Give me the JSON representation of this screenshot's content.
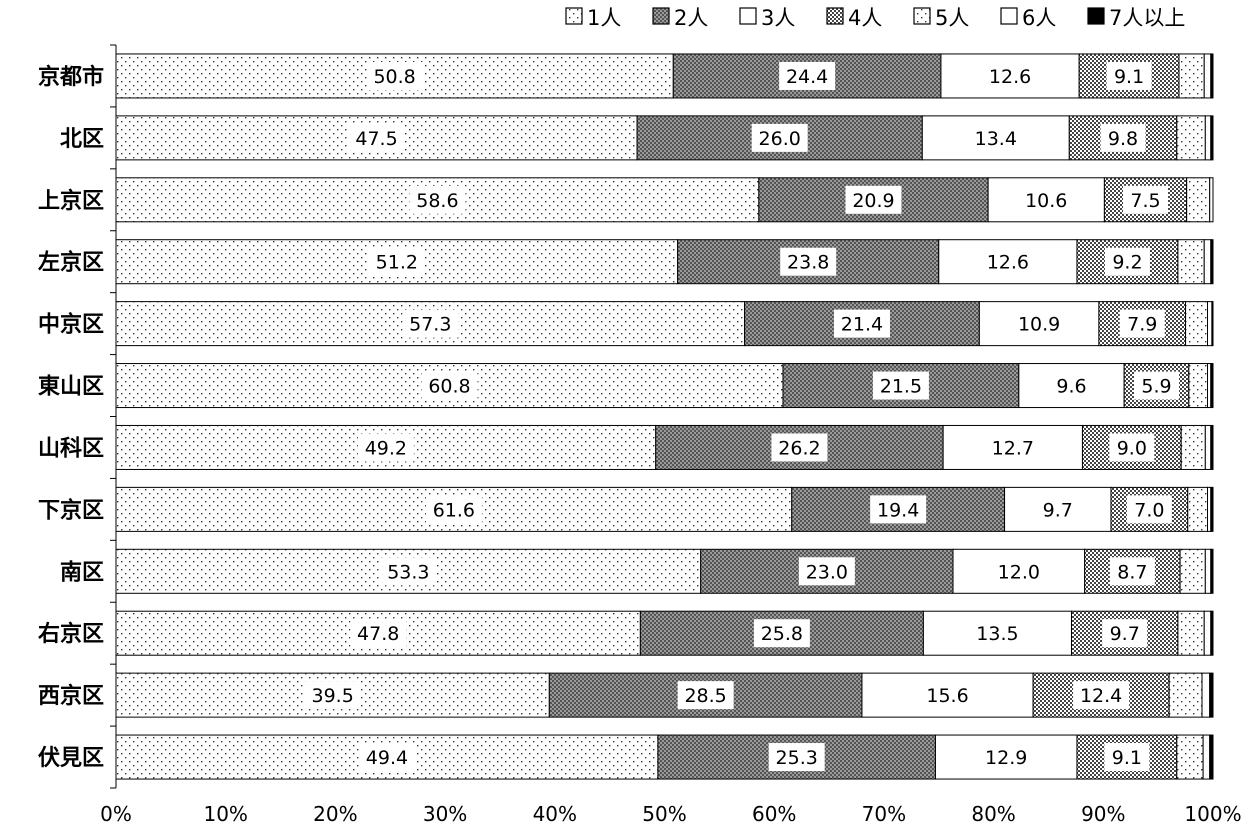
{
  "chart_data": {
    "type": "bar",
    "orientation": "horizontal",
    "stacked": true,
    "percent_stacked": true,
    "categories": [
      "京都市",
      "北区",
      "上京区",
      "左京区",
      "中京区",
      "東山区",
      "山科区",
      "下京区",
      "南区",
      "右京区",
      "西京区",
      "伏見区"
    ],
    "series": [
      {
        "name": "1人",
        "values": [
          50.8,
          47.5,
          58.6,
          51.2,
          57.3,
          60.8,
          49.2,
          61.6,
          53.3,
          47.8,
          39.5,
          49.4
        ],
        "pattern": "dots-sparse",
        "show_labels": true
      },
      {
        "name": "2人",
        "values": [
          24.4,
          26.0,
          20.9,
          23.8,
          21.4,
          21.5,
          26.2,
          19.4,
          23.0,
          25.8,
          28.5,
          25.3
        ],
        "pattern": "dense-grey",
        "show_labels": true
      },
      {
        "name": "3人",
        "values": [
          12.6,
          13.4,
          10.6,
          12.6,
          10.9,
          9.6,
          12.7,
          9.7,
          12.0,
          13.5,
          15.6,
          12.9
        ],
        "pattern": "white",
        "show_labels": true
      },
      {
        "name": "4人",
        "values": [
          9.1,
          9.8,
          7.5,
          9.2,
          7.9,
          5.9,
          9.0,
          7.0,
          8.7,
          9.7,
          12.4,
          9.1
        ],
        "pattern": "checker",
        "show_labels": true
      },
      {
        "name": "5人",
        "values": [
          2.3,
          2.6,
          2.1,
          2.4,
          2.0,
          1.7,
          2.2,
          1.8,
          2.3,
          2.4,
          3.0,
          2.4
        ],
        "pattern": "dots-sparse",
        "show_labels": false
      },
      {
        "name": "6人",
        "values": [
          0.6,
          0.5,
          0.4,
          0.6,
          0.4,
          0.3,
          0.5,
          0.3,
          0.5,
          0.6,
          0.7,
          0.6
        ],
        "pattern": "white",
        "show_labels": false
      },
      {
        "name": "7人以上",
        "values": [
          0.2,
          0.2,
          0.1,
          0.2,
          0.1,
          0.2,
          0.2,
          0.2,
          0.2,
          0.2,
          0.3,
          0.3
        ],
        "pattern": "black",
        "show_labels": false
      }
    ],
    "xlim": [
      0,
      100
    ],
    "xticks": [
      "0%",
      "10%",
      "20%",
      "30%",
      "40%",
      "50%",
      "60%",
      "70%",
      "80%",
      "90%",
      "100%"
    ],
    "legend_position": "top-right",
    "grid": false
  }
}
